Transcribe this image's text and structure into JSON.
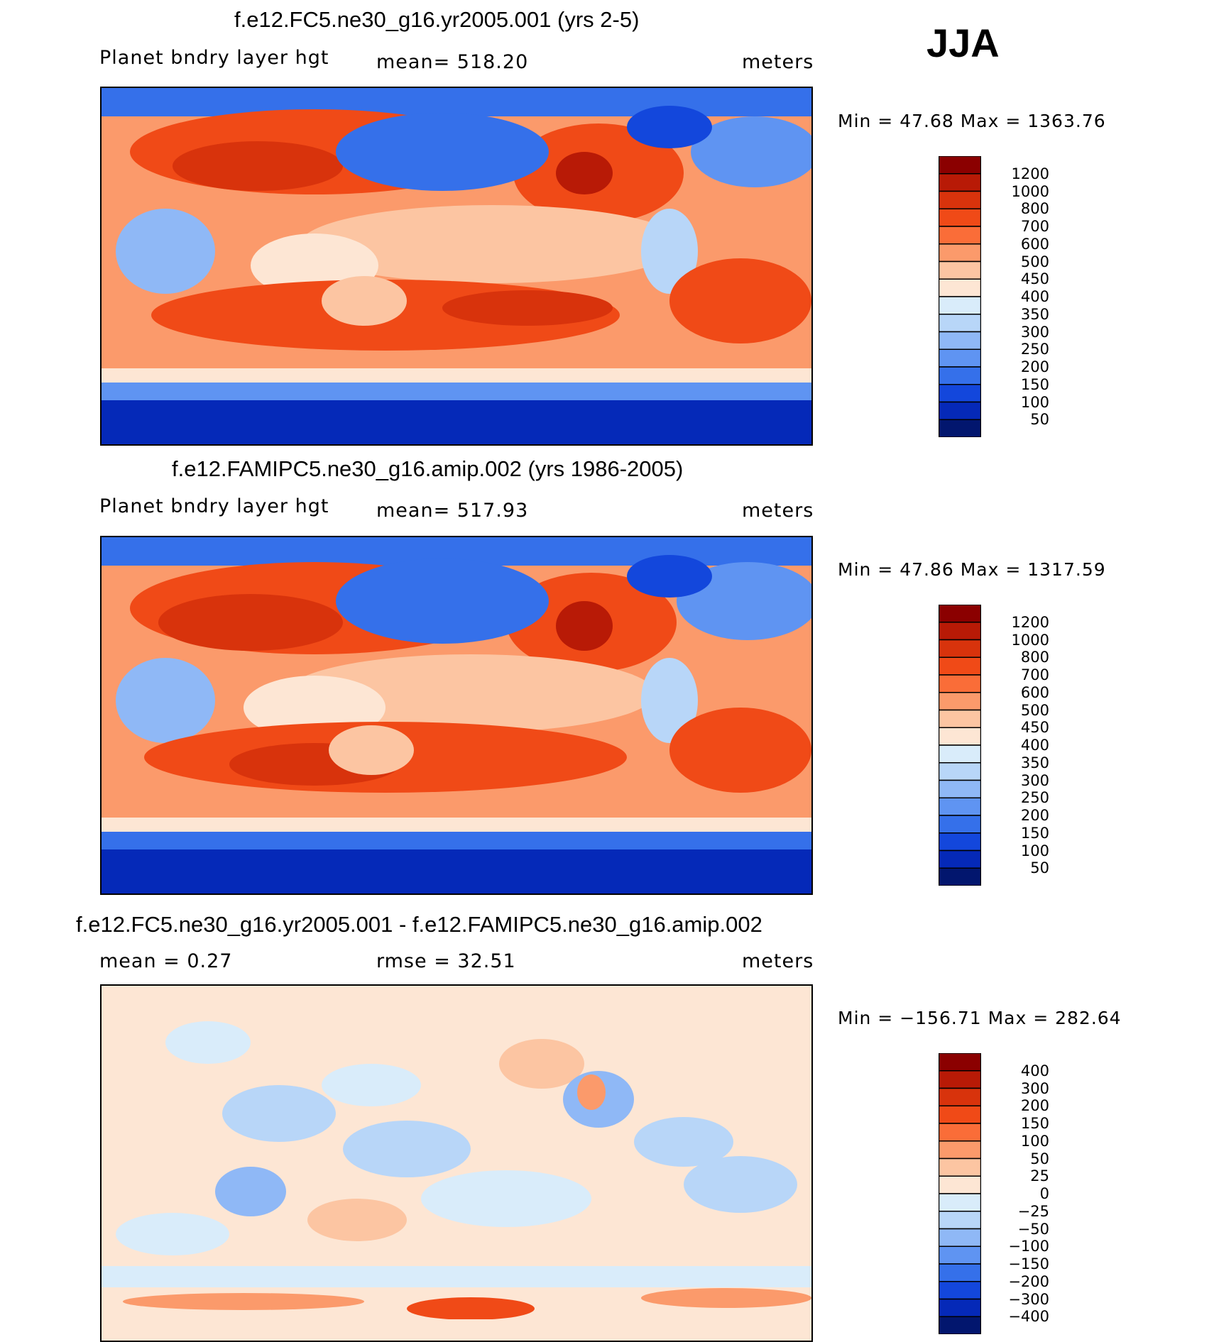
{
  "season": "JJA",
  "panels": [
    {
      "title": "f.e12.FC5.ne30_g16.yr2005.001 (yrs 2-5)",
      "left_label": "Planet bndry layer hgt",
      "center_label": "mean= 518.20",
      "right_label": "meters",
      "minmax": "Min =   47.68 Max = 1363.76"
    },
    {
      "title": "f.e12.FAMIPC5.ne30_g16.amip.002 (yrs 1986-2005)",
      "left_label": "Planet bndry layer hgt",
      "center_label": "mean= 517.93",
      "right_label": "meters",
      "minmax": "Min =   47.86 Max = 1317.59"
    },
    {
      "title": "f.e12.FC5.ne30_g16.yr2005.001 - f.e12.FAMIPC5.ne30_g16.amip.002",
      "left_label": "mean =     0.27",
      "center_label": "rmse =    32.51",
      "right_label": "meters",
      "minmax": "Min = −156.71 Max =  282.64"
    }
  ],
  "colorbars": {
    "abs": {
      "labels": [
        "1200",
        "1000",
        "800",
        "700",
        "600",
        "500",
        "450",
        "400",
        "350",
        "300",
        "250",
        "200",
        "150",
        "100",
        "50"
      ],
      "colors": [
        "#8b0000",
        "#b81a06",
        "#d8330c",
        "#f04a17",
        "#fa6d38",
        "#fb9a6b",
        "#fcc5a2",
        "#fde6d4",
        "#d9ecfa",
        "#b8d6f8",
        "#8fb8f6",
        "#5f94f2",
        "#3570ea",
        "#1347dc",
        "#0529b8",
        "#02166e"
      ]
    },
    "diff": {
      "labels": [
        "400",
        "300",
        "200",
        "150",
        "100",
        "50",
        "25",
        "0",
        "−25",
        "−50",
        "−100",
        "−150",
        "−200",
        "−300",
        "−400"
      ],
      "colors": [
        "#8b0000",
        "#b81a06",
        "#d8330c",
        "#f04a17",
        "#fa6d38",
        "#fb9a6b",
        "#fcc5a2",
        "#fde6d4",
        "#d9ecfa",
        "#b8d6f8",
        "#8fb8f6",
        "#5f94f2",
        "#3570ea",
        "#1347dc",
        "#0529b8",
        "#02166e"
      ]
    }
  },
  "chart_data": [
    {
      "type": "heatmap",
      "title": "f.e12.FC5.ne30_g16.yr2005.001 (yrs 2-5)",
      "variable": "Planet bndry layer hgt",
      "units": "meters",
      "season": "JJA",
      "mean": 518.2,
      "min": 47.68,
      "max": 1363.76,
      "contour_levels": [
        50,
        100,
        150,
        200,
        250,
        300,
        350,
        400,
        450,
        500,
        600,
        700,
        800,
        1000,
        1200
      ]
    },
    {
      "type": "heatmap",
      "title": "f.e12.FAMIPC5.ne30_g16.amip.002 (yrs 1986-2005)",
      "variable": "Planet bndry layer hgt",
      "units": "meters",
      "season": "JJA",
      "mean": 517.93,
      "min": 47.86,
      "max": 1317.59,
      "contour_levels": [
        50,
        100,
        150,
        200,
        250,
        300,
        350,
        400,
        450,
        500,
        600,
        700,
        800,
        1000,
        1200
      ]
    },
    {
      "type": "heatmap",
      "title": "f.e12.FC5.ne30_g16.yr2005.001 - f.e12.FAMIPC5.ne30_g16.amip.002",
      "units": "meters",
      "season": "JJA",
      "mean": 0.27,
      "rmse": 32.51,
      "min": -156.71,
      "max": 282.64,
      "contour_levels": [
        -400,
        -300,
        -200,
        -150,
        -100,
        -50,
        -25,
        0,
        25,
        50,
        100,
        150,
        200,
        300,
        400
      ]
    }
  ]
}
